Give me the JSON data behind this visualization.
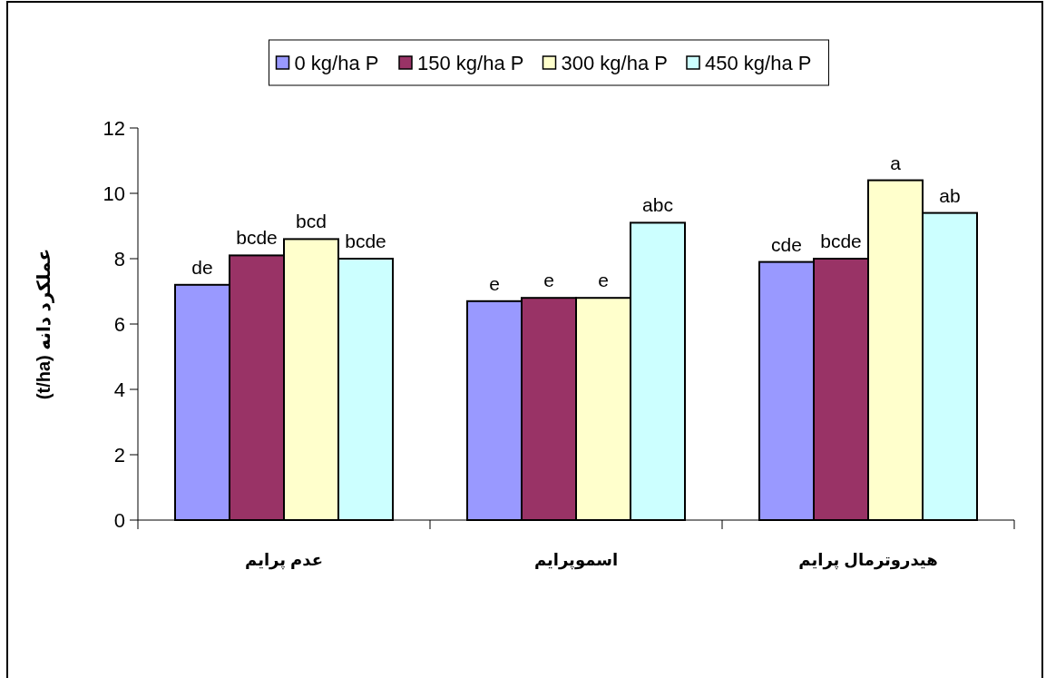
{
  "chart_data": {
    "type": "bar",
    "ylabel": "عملکرد دانه (t/ha)",
    "categories": [
      "عدم پرایم",
      "اسموپرایم",
      "هیدروترمال پرایم"
    ],
    "series": [
      {
        "name": "0 kg/ha P",
        "color": "#9999ff",
        "values": [
          7.2,
          6.7,
          7.9
        ],
        "value_labels": [
          "de",
          "e",
          "cde"
        ]
      },
      {
        "name": "150 kg/ha P",
        "color": "#993366",
        "values": [
          8.1,
          6.8,
          8.0
        ],
        "value_labels": [
          "bcde",
          "e",
          "bcde"
        ]
      },
      {
        "name": "300 kg/ha P",
        "color": "#ffffcc",
        "values": [
          8.6,
          6.8,
          10.4
        ],
        "value_labels": [
          "bcd",
          "e",
          "a"
        ]
      },
      {
        "name": "450 kg/ha P",
        "color": "#ccffff",
        "values": [
          8.0,
          9.1,
          9.4
        ],
        "value_labels": [
          "bcde",
          "abc",
          "ab"
        ]
      }
    ],
    "ylim": [
      0,
      12
    ],
    "yticks": [
      0,
      2,
      4,
      6,
      8,
      10,
      12
    ],
    "legend": "top",
    "grid": false
  }
}
